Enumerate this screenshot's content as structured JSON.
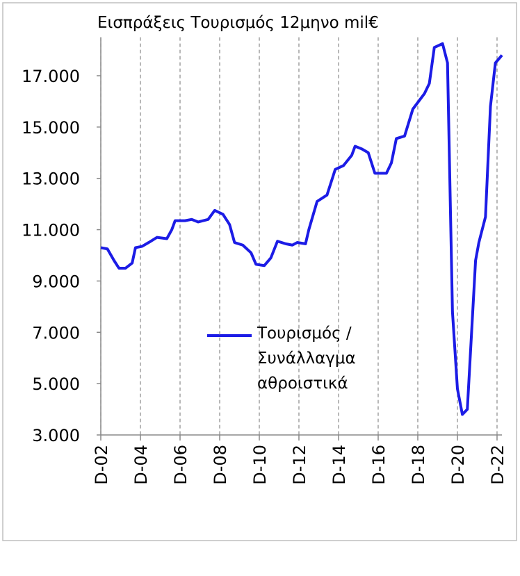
{
  "chart_data": {
    "type": "line",
    "title": "Εισπράξεις Τουρισμός 12μηνο mil€",
    "x": [
      0,
      4,
      8,
      11,
      15,
      19,
      21,
      25,
      29,
      34,
      40,
      43,
      45,
      51,
      55,
      59,
      65,
      69,
      74,
      78,
      81,
      86,
      91,
      94,
      99,
      103,
      107,
      112,
      116,
      119,
      124,
      126,
      131,
      137,
      142,
      147,
      152,
      154,
      158,
      162,
      166,
      173,
      176,
      179,
      184,
      189,
      196,
      199,
      202,
      207,
      210,
      213,
      216,
      219,
      222,
      227,
      229,
      233,
      236,
      239,
      243
    ],
    "series": [
      {
        "name": "Τουρισμός / Συνάλλαγμα αθροιστικά",
        "color": "#1c1ce6",
        "values": [
          10300,
          10250,
          9800,
          9500,
          9500,
          9700,
          10300,
          10350,
          10500,
          10700,
          10650,
          11000,
          11350,
          11350,
          11400,
          11300,
          11400,
          11750,
          11600,
          11200,
          10500,
          10400,
          10100,
          9650,
          9600,
          9900,
          10550,
          10450,
          10400,
          10500,
          10450,
          11000,
          12100,
          12350,
          13350,
          13500,
          13900,
          14250,
          14150,
          14000,
          13200,
          13200,
          13600,
          14550,
          14650,
          15700,
          16300,
          16700,
          18100,
          18250,
          17500,
          7800,
          4800,
          3800,
          4000,
          9800,
          10500,
          11500,
          15800,
          17500,
          17800
        ]
      }
    ],
    "xlim": [
      0,
      243
    ],
    "xticks": [
      {
        "value": 0,
        "label": "D-02"
      },
      {
        "value": 24,
        "label": "D-04"
      },
      {
        "value": 48,
        "label": "D-06"
      },
      {
        "value": 72,
        "label": "D-08"
      },
      {
        "value": 96,
        "label": "D-10"
      },
      {
        "value": 120,
        "label": "D-12"
      },
      {
        "value": 144,
        "label": "D-14"
      },
      {
        "value": 168,
        "label": "D-16"
      },
      {
        "value": 192,
        "label": "D-18"
      },
      {
        "value": 216,
        "label": "D-20"
      },
      {
        "value": 240,
        "label": "D-22"
      }
    ],
    "ylim": [
      3000,
      18500
    ],
    "yticks": [
      {
        "value": 3000,
        "label": "3.000"
      },
      {
        "value": 5000,
        "label": "5.000"
      },
      {
        "value": 7000,
        "label": "7.000"
      },
      {
        "value": 9000,
        "label": "9.000"
      },
      {
        "value": 11000,
        "label": "11.000"
      },
      {
        "value": 13000,
        "label": "13.000"
      },
      {
        "value": 15000,
        "label": "15.000"
      },
      {
        "value": 17000,
        "label": "17.000"
      }
    ],
    "grid": true
  }
}
